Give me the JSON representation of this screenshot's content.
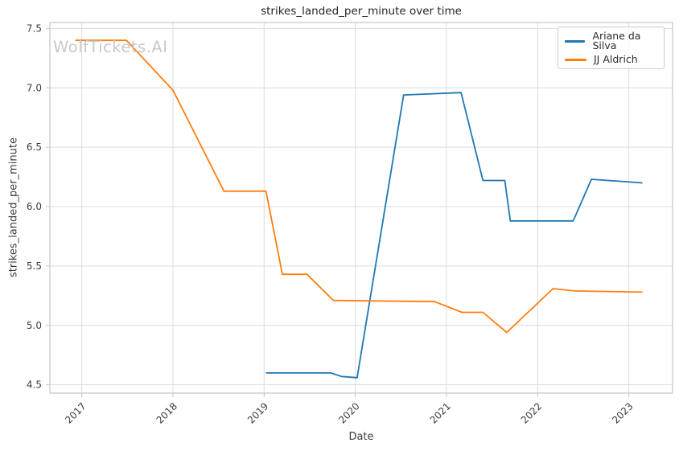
{
  "watermark": "WolfTickets.AI",
  "chart_data": {
    "type": "line",
    "title": "strikes_landed_per_minute over time",
    "xlabel": "Date",
    "ylabel": "strikes_landed_per_minute",
    "xlim": [
      2016.65,
      2023.48
    ],
    "ylim": [
      4.43,
      7.55
    ],
    "grid": true,
    "grid_color": "#dcdcdc",
    "axis_color": "#c4c4c4",
    "tick_label_color": "#3d3d3d",
    "legend_position": "upper right",
    "xticks": {
      "values": [
        2017,
        2018,
        2019,
        2020,
        2021,
        2022,
        2023
      ],
      "labels": [
        "2017",
        "2018",
        "2019",
        "2020",
        "2021",
        "2022",
        "2023"
      ]
    },
    "yticks": {
      "values": [
        4.5,
        5.0,
        5.5,
        6.0,
        6.5,
        7.0,
        7.5
      ],
      "labels": [
        "4.5",
        "5.0",
        "5.5",
        "6.0",
        "6.5",
        "7.0",
        "7.5"
      ]
    },
    "series": [
      {
        "name": "Ariane da Silva",
        "color": "#1f77b4",
        "points": [
          [
            2019.02,
            4.6
          ],
          [
            2019.73,
            4.6
          ],
          [
            2019.85,
            4.57
          ],
          [
            2020.02,
            4.56
          ],
          [
            2020.53,
            6.94
          ],
          [
            2021.16,
            6.96
          ],
          [
            2021.4,
            6.22
          ],
          [
            2021.64,
            6.22
          ],
          [
            2021.7,
            5.88
          ],
          [
            2022.39,
            5.88
          ],
          [
            2022.59,
            6.23
          ],
          [
            2023.15,
            6.2
          ]
        ]
      },
      {
        "name": "JJ Aldrich",
        "color": "#ff7f0e",
        "points": [
          [
            2016.93,
            7.4
          ],
          [
            2017.49,
            7.4
          ],
          [
            2018.0,
            6.98
          ],
          [
            2018.56,
            6.13
          ],
          [
            2019.02,
            6.13
          ],
          [
            2019.2,
            5.43
          ],
          [
            2019.47,
            5.43
          ],
          [
            2019.76,
            5.21
          ],
          [
            2020.87,
            5.2
          ],
          [
            2021.17,
            5.11
          ],
          [
            2021.4,
            5.11
          ],
          [
            2021.66,
            4.94
          ],
          [
            2022.17,
            5.31
          ],
          [
            2022.4,
            5.29
          ],
          [
            2023.15,
            5.28
          ]
        ]
      }
    ]
  }
}
